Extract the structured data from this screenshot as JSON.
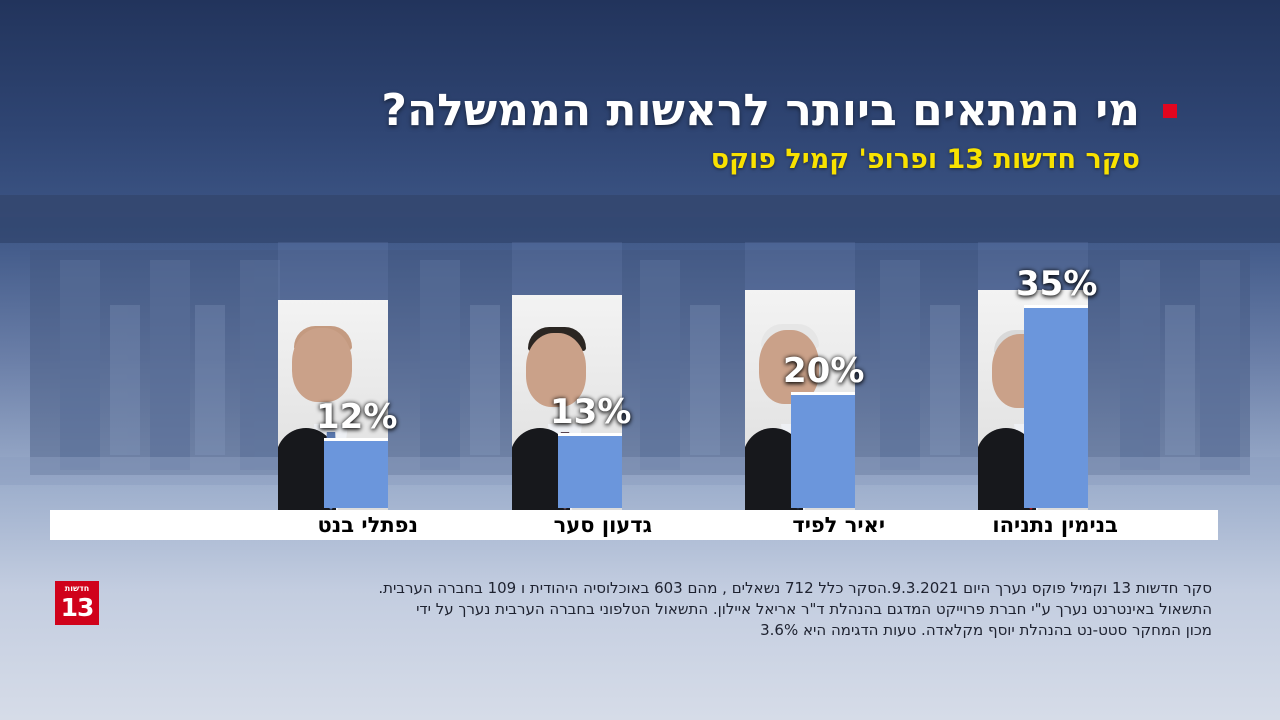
{
  "title": "מי המתאים ביותר לראשות הממשלה?",
  "subtitle": "סקר חדשות 13 ופרופ' קמיל פוקס",
  "colors": {
    "accent": "#e1061f",
    "subtitle": "#f9e200",
    "bar": "#6b96dc",
    "logo": "#d0021b"
  },
  "chart_data": {
    "type": "bar",
    "categories": [
      "בנימין נתניהו",
      "יאיר לפיד",
      "גדעון סער",
      "נפתלי בנט"
    ],
    "values": [
      35,
      20,
      13,
      12
    ],
    "labels": [
      "35%",
      "20%",
      "13%",
      "12%"
    ],
    "unit": "%",
    "title": "מי המתאים ביותר לראשות הממשלה?",
    "subtitle": "סקר חדשות 13 ופרופ' קמיל פוקס",
    "grid": false
  },
  "logo": {
    "small": "חדשות",
    "number": "13"
  },
  "footnote": {
    "line1": "סקר חדשות 13 וקמיל פוקס נערך היום 9.3.2021.הסקר כלל 712 נשאלים , מהם 603 באוכלוסיה היהודית ו 109 בחברה הערבית.",
    "line2": "התשאול באינטרנט נערך ע\"י חברת פרוייקט המדגם בהנהלת ד\"ר אריאל איילון. התשאול הטלפוני בחברה הערבית נערך על ידי",
    "line3": "מכון המחקר סטט-נט בהנהלת יוסף מקלאדה. טעות הדגימה היא 3.6%"
  }
}
